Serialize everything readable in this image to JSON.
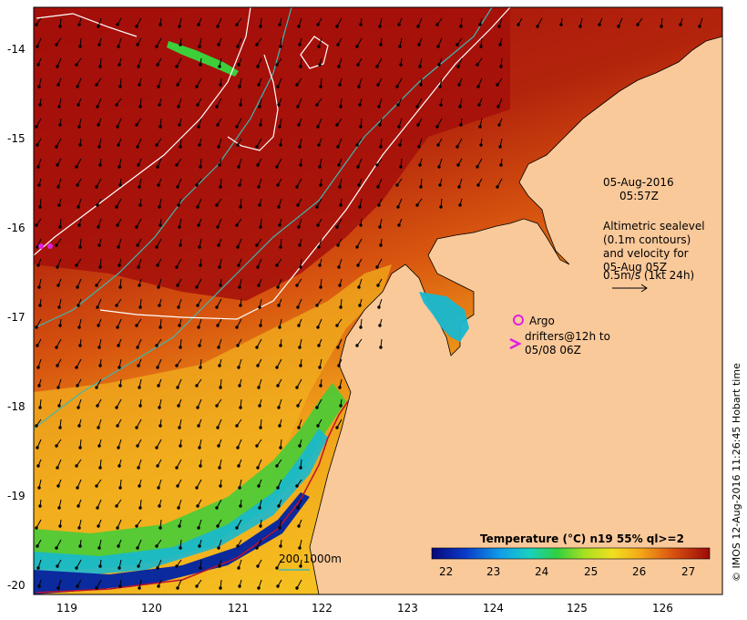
{
  "map": {
    "lat_labels": [
      "-14",
      "-15",
      "-16",
      "-17",
      "-18",
      "-19",
      "-20"
    ],
    "lon_labels": [
      "119",
      "120",
      "121",
      "122",
      "123",
      "124",
      "125",
      "126"
    ]
  },
  "annotations": {
    "date": "05-Aug-2016",
    "time": "05:57Z",
    "altimetry_line1": "Altimetric sealevel",
    "altimetry_line2": "(0.1m contours)",
    "altimetry_line3": "and velocity for",
    "altimetry_line4": "05-Aug 05Z",
    "scale_label": "0.5m/s (1kt 24h)",
    "argo_label": "Argo",
    "drifters_line1": "drifters@12h to",
    "drifters_line2": "05/08 06Z",
    "depth_legend": "200  1000m"
  },
  "colorbar": {
    "title": "Temperature (°C) n19 55% ql>=2",
    "ticks": [
      "22",
      "23",
      "24",
      "25",
      "26",
      "27"
    ]
  },
  "credit": "© IMOS 12-Aug-2016 11:26:45 Hobart time",
  "colors": {
    "land": "#fac99a",
    "warm": "#a50f0a",
    "mid": "#e06a10",
    "cool": "#f2b21e",
    "green": "#3ccf3a",
    "cyan": "#17b8d0",
    "blue": "#0b2a9e",
    "contour_white": "#ffffff",
    "contour_cyan": "#3fb8b0",
    "argo": "#e020e0"
  }
}
